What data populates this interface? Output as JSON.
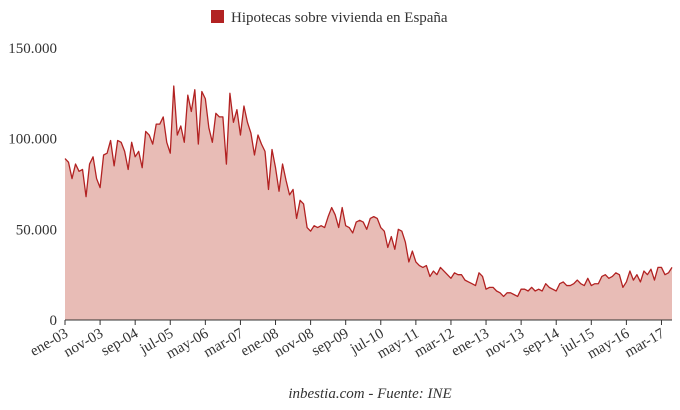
{
  "chart_data": {
    "type": "area",
    "legend": {
      "label": "Hipotecas sobre vivienda en España",
      "color": "#b22222",
      "placement": "top-center"
    },
    "source_note": "inbestia.com - Fuente: INE",
    "colors": {
      "line": "#b22222",
      "fill": "#e8bcb6",
      "axis": "#333333"
    },
    "y_ticks": [
      {
        "value": 0,
        "label": "0"
      },
      {
        "value": 50000,
        "label": "50.000"
      },
      {
        "value": 100000,
        "label": "100.000"
      },
      {
        "value": 150000,
        "label": "150.000"
      }
    ],
    "ylim": [
      0,
      150000
    ],
    "grid": false,
    "x_start": "ene-03",
    "x_ticks": [
      {
        "index": 0,
        "label": "ene-03"
      },
      {
        "index": 10,
        "label": "nov-03"
      },
      {
        "index": 20,
        "label": "sep-04"
      },
      {
        "index": 30,
        "label": "jul-05"
      },
      {
        "index": 40,
        "label": "may-06"
      },
      {
        "index": 50,
        "label": "mar-07"
      },
      {
        "index": 60,
        "label": "ene-08"
      },
      {
        "index": 70,
        "label": "nov-08"
      },
      {
        "index": 80,
        "label": "sep-09"
      },
      {
        "index": 90,
        "label": "jul-10"
      },
      {
        "index": 100,
        "label": "may-11"
      },
      {
        "index": 110,
        "label": "mar-12"
      },
      {
        "index": 120,
        "label": "ene-13"
      },
      {
        "index": 130,
        "label": "nov-13"
      },
      {
        "index": 140,
        "label": "sep-14"
      },
      {
        "index": 150,
        "label": "jul-15"
      },
      {
        "index": 160,
        "label": "may-16"
      },
      {
        "index": 170,
        "label": "mar-17"
      }
    ],
    "values": [
      89000,
      87000,
      78000,
      86000,
      82000,
      83000,
      68000,
      86000,
      90000,
      78000,
      73000,
      91000,
      92000,
      99000,
      85000,
      99000,
      98000,
      93000,
      83000,
      98000,
      90000,
      93000,
      84000,
      104000,
      102000,
      97000,
      108000,
      108000,
      112000,
      98000,
      92000,
      129000,
      102000,
      107000,
      98000,
      124000,
      115000,
      127000,
      97000,
      126000,
      122000,
      106000,
      98000,
      114000,
      112000,
      112000,
      86000,
      125000,
      109000,
      116000,
      102000,
      118000,
      109000,
      103000,
      91000,
      102000,
      97000,
      93000,
      72000,
      94000,
      84000,
      71000,
      86000,
      77000,
      69000,
      72000,
      56000,
      66000,
      64000,
      51000,
      49000,
      52000,
      51000,
      52000,
      51000,
      57000,
      62000,
      58000,
      51000,
      62000,
      52000,
      51000,
      48000,
      54000,
      55000,
      54000,
      50000,
      56000,
      57000,
      56000,
      51000,
      49000,
      40000,
      46000,
      39000,
      50000,
      49000,
      43000,
      32000,
      38000,
      32000,
      30000,
      29000,
      30000,
      24000,
      27000,
      25000,
      29000,
      27000,
      25000,
      23000,
      26000,
      25000,
      25000,
      22000,
      21000,
      20000,
      19000,
      26000,
      24000,
      17000,
      18000,
      18000,
      16000,
      15000,
      13000,
      15000,
      15000,
      14000,
      13000,
      17000,
      17000,
      16000,
      18000,
      16000,
      17000,
      16000,
      20000,
      18000,
      17000,
      16000,
      20000,
      21000,
      19000,
      19000,
      20000,
      22000,
      20000,
      19000,
      23000,
      19000,
      20000,
      20000,
      24000,
      25000,
      23000,
      24000,
      26000,
      25000,
      18000,
      21000,
      27000,
      22000,
      25000,
      21000,
      27000,
      25000,
      28000,
      22000,
      29000,
      29000,
      25000,
      26000,
      29000
    ]
  }
}
